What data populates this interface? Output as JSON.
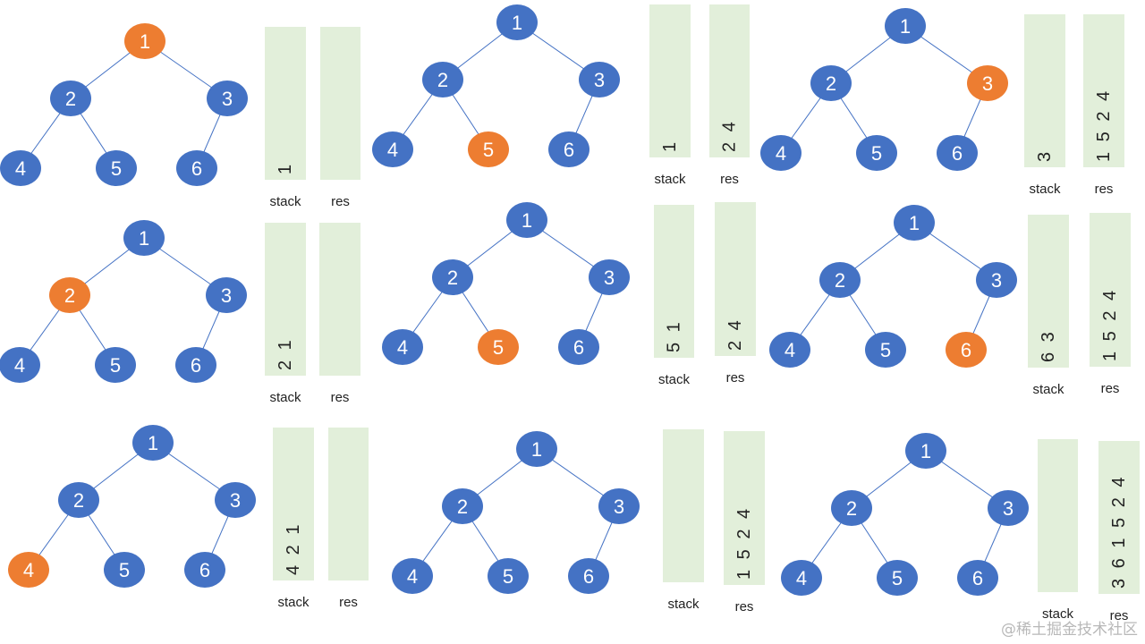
{
  "colors": {
    "default_node": "#4472c4",
    "highlight_node": "#ed7d31",
    "edge": "#4472c4",
    "bar": "#e2efda",
    "text": "#222222"
  },
  "tree": {
    "nodes": [
      "1",
      "2",
      "3",
      "4",
      "5",
      "6"
    ],
    "edges": [
      [
        "1",
        "2"
      ],
      [
        "1",
        "3"
      ],
      [
        "2",
        "4"
      ],
      [
        "2",
        "5"
      ],
      [
        "3",
        "6"
      ]
    ]
  },
  "steps": [
    {
      "highlight": "1",
      "stack_label": "stack",
      "stack": "1",
      "res_label": "res",
      "res": ""
    },
    {
      "highlight": "2",
      "stack_label": "stack",
      "stack": "2 1",
      "res_label": "res",
      "res": ""
    },
    {
      "highlight": "4",
      "stack_label": "stack",
      "stack": "4 2 1",
      "res_label": "res",
      "res": ""
    },
    {
      "highlight": "5",
      "stack_label": "stack",
      "stack": "1",
      "res_label": "res",
      "res": "2 4"
    },
    {
      "highlight": "5",
      "stack_label": "stack",
      "stack": "5 1",
      "res_label": "res",
      "res": "2 4"
    },
    {
      "highlight": "",
      "stack_label": "stack",
      "stack": "",
      "res_label": "res",
      "res": "1 5 2 4"
    },
    {
      "highlight": "3",
      "stack_label": "stack",
      "stack": "3",
      "res_label": "res",
      "res": "1 5 2 4"
    },
    {
      "highlight": "6",
      "stack_label": "stack",
      "stack": "6 3",
      "res_label": "res",
      "res": "1 5 2 4"
    },
    {
      "highlight": "",
      "stack_label": "stack",
      "stack": "",
      "res_label": "res",
      "res": "3 6 1 5 2 4"
    }
  ],
  "watermark": "@稀土掘金技术社区"
}
